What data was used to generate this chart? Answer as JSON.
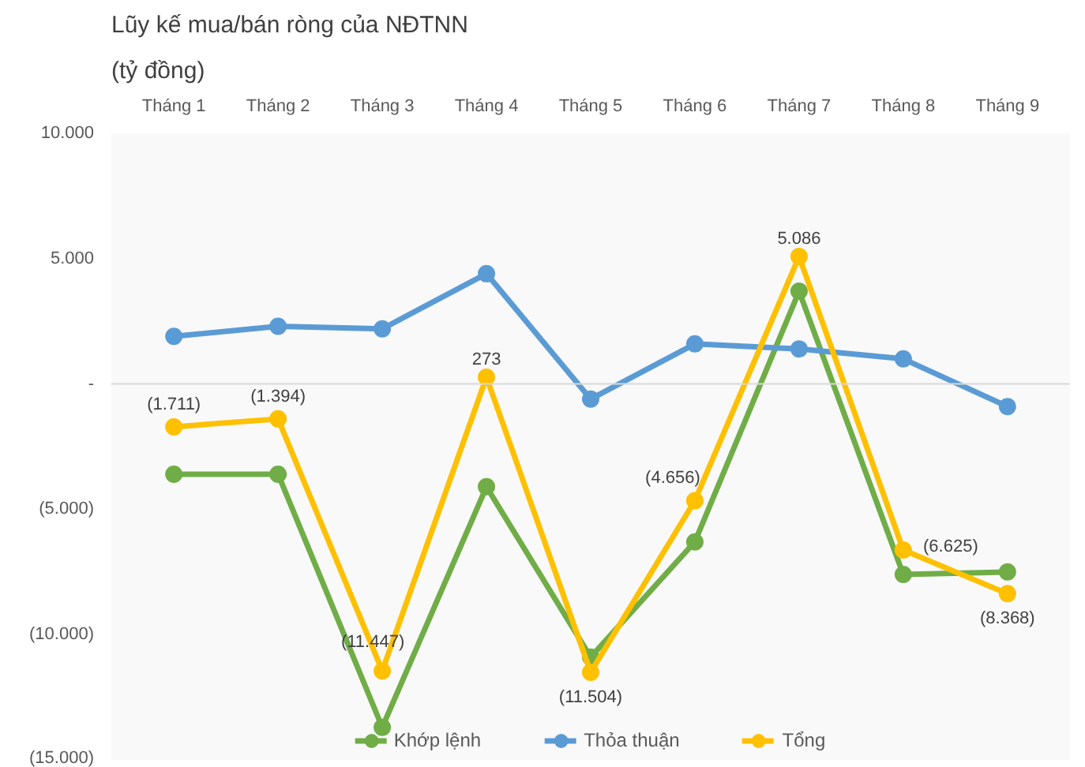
{
  "chart_data": {
    "type": "line",
    "title": "Lũy kế mua/bán ròng của NĐTNN",
    "subtitle": "(tỷ đồng)",
    "categories": [
      "Tháng 1",
      "Tháng 2",
      "Tháng 3",
      "Tháng 4",
      "Tháng 5",
      "Tháng 6",
      "Tháng 7",
      "Tháng 8",
      "Tháng 9"
    ],
    "series": [
      {
        "name": "Khớp lệnh",
        "color": "#70ad47",
        "values": [
          -3600,
          -3600,
          -13700,
          -4100,
          -10900,
          -6300,
          3700,
          -7600,
          -7500
        ]
      },
      {
        "name": "Thỏa thuận",
        "color": "#5b9bd5",
        "values": [
          1900,
          2300,
          2200,
          4400,
          -600,
          1600,
          1400,
          1000,
          -900
        ]
      },
      {
        "name": "Tổng",
        "color": "#ffc000",
        "values": [
          -1711,
          -1394,
          -11447,
          273,
          -11504,
          -4656,
          5086,
          -6625,
          -8368
        ],
        "value_labels": [
          "(1.711)",
          "(1.394)",
          "(11.447)",
          "273",
          "(11.504)",
          "(4.656)",
          "5.086",
          "(6.625)",
          "(8.368)"
        ]
      }
    ],
    "ylim": [
      -15000,
      10000
    ],
    "yticks": [
      {
        "value": 10000,
        "label": "10.000"
      },
      {
        "value": 5000,
        "label": "5.000"
      },
      {
        "value": 0,
        "label": "-"
      },
      {
        "value": -5000,
        "label": "(5.000)"
      },
      {
        "value": -10000,
        "label": "(10.000)"
      },
      {
        "value": -15000,
        "label": "(15.000)"
      }
    ],
    "ref_lines": [
      {
        "axis": "y",
        "value": 0,
        "color": "#d9d9d9"
      }
    ],
    "marker": "circle",
    "line_style": "solid",
    "legend": "bottom",
    "grid": false
  }
}
